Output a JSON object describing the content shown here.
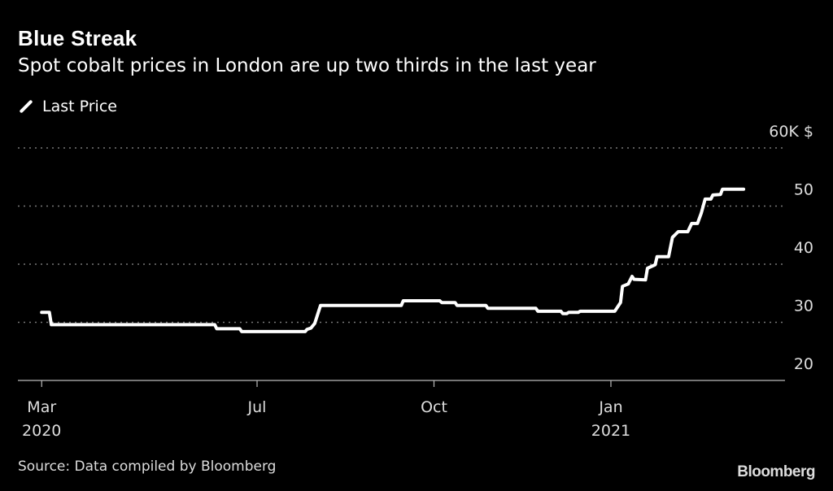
{
  "header": {
    "title": "Blue Streak",
    "subtitle": "Spot cobalt prices in London are up two thirds in the last year"
  },
  "footer": {
    "source": "Source: Data compiled by Bloomberg",
    "logo": "Bloomberg"
  },
  "chart_data": {
    "type": "line",
    "title": "Blue Streak",
    "subtitle": "Spot cobalt prices in London are up two thirds in the last year",
    "xlabel": "",
    "ylabel": "$",
    "x_unit": "days since 2020-03-01",
    "ylim": [
      20,
      60
    ],
    "xlim": [
      0,
      395
    ],
    "grid": true,
    "legend": {
      "position": "top-left",
      "entries": [
        "Last Price"
      ]
    },
    "y_ticks": [
      {
        "value": 60,
        "label": "60K $"
      },
      {
        "value": 50,
        "label": "50"
      },
      {
        "value": 40,
        "label": "40"
      },
      {
        "value": 30,
        "label": "30"
      },
      {
        "value": 20,
        "label": "20"
      }
    ],
    "x_ticks": [
      {
        "value": 10,
        "label": "Mar",
        "sublabel": "2020"
      },
      {
        "value": 122,
        "label": "Jul",
        "sublabel": ""
      },
      {
        "value": 214,
        "label": "Oct",
        "sublabel": ""
      },
      {
        "value": 306,
        "label": "Jan",
        "sublabel": "2021"
      }
    ],
    "series": [
      {
        "name": "Last Price",
        "color": "#ffffff",
        "unit": "thousand USD per tonne",
        "x": [
          10,
          14,
          15,
          100,
          101,
          109,
          110,
          113,
          114,
          147,
          148,
          150,
          152,
          155,
          197,
          198,
          217,
          218,
          225,
          226,
          241,
          242,
          267,
          268,
          280,
          281,
          283,
          284,
          289,
          290,
          308,
          311,
          312,
          315,
          317,
          318,
          324,
          325,
          329,
          330,
          336,
          338,
          341,
          346,
          348,
          351,
          353,
          355,
          358,
          359,
          363,
          364,
          375
        ],
        "y": [
          31.7,
          31.7,
          29.6,
          29.6,
          28.9,
          28.9,
          28.9,
          28.9,
          28.4,
          28.4,
          28.8,
          29.0,
          29.8,
          32.9,
          32.9,
          33.7,
          33.7,
          33.4,
          33.4,
          32.9,
          32.9,
          32.4,
          32.4,
          31.9,
          31.9,
          31.5,
          31.5,
          31.7,
          31.7,
          31.9,
          31.9,
          33.4,
          36.2,
          36.6,
          37.9,
          37.4,
          37.3,
          39.3,
          39.9,
          41.3,
          41.3,
          44.6,
          45.6,
          45.6,
          47.0,
          47.0,
          48.8,
          51.2,
          51.2,
          51.9,
          52.0,
          52.9,
          52.9
        ]
      }
    ]
  }
}
